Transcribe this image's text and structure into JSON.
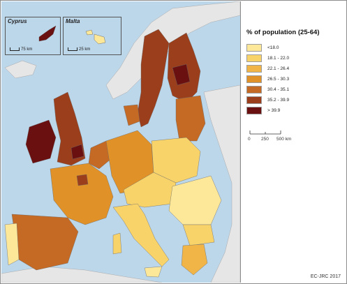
{
  "map": {
    "legend_title": "% of population (25-64)",
    "classes": [
      {
        "label": "<18.0",
        "color": "#fde89a"
      },
      {
        "label": "18.1 - 22.0",
        "color": "#f8d36a"
      },
      {
        "label": "22.1 - 26.4",
        "color": "#f0b546"
      },
      {
        "label": "26.5 - 30.3",
        "color": "#e09128"
      },
      {
        "label": "30.4 - 35.1",
        "color": "#c46a24"
      },
      {
        "label": "35.2 - 39.9",
        "color": "#9a3e1c"
      },
      {
        "label": "> 39.9",
        "color": "#6a1010"
      }
    ],
    "scale": {
      "labels": [
        "0",
        "250",
        "500 km"
      ]
    },
    "insets": [
      {
        "title": "Cyprus",
        "scale_label": "75 km"
      },
      {
        "title": "Malta",
        "scale_label": "25 km"
      }
    ],
    "credit": "EC-JRC 2017",
    "colors": {
      "sea": "#bcd6ea",
      "non_eu_land": "#e6e6e6"
    }
  }
}
